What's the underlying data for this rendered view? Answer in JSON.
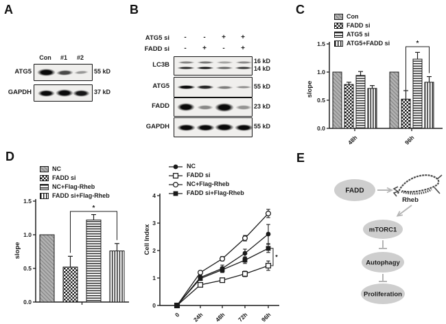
{
  "figure": {
    "panels": {
      "a": {
        "label": "A",
        "lanes": [
          "Con",
          "#1",
          "#2"
        ],
        "rows": [
          {
            "target": "ATG5",
            "marker": "55 kD",
            "bands": [
              1,
              0.72,
              0.38
            ]
          },
          {
            "target": "GAPDH",
            "marker": "37 kD",
            "bands": [
              1,
              1,
              0.95
            ]
          }
        ]
      },
      "b": {
        "label": "B",
        "conditions": [
          {
            "name": "ATG5 si",
            "signs": [
              "-",
              "-",
              "+",
              "+"
            ]
          },
          {
            "name": "FADD si",
            "signs": [
              "-",
              "+",
              "-",
              "+"
            ]
          }
        ],
        "blots": [
          {
            "target": "LC3B",
            "markers": [
              "16 kD",
              "14 kD"
            ],
            "bands": [
              0.85,
              0.95,
              0.6,
              0.8
            ]
          },
          {
            "target": "ATG5",
            "markers": [
              "55 kD"
            ],
            "bands": [
              1,
              0.88,
              0.5,
              0.42
            ]
          },
          {
            "target": "FADD",
            "markers": [
              "23 kD"
            ],
            "bands": [
              1,
              0.45,
              1,
              0.4
            ]
          },
          {
            "target": "GAPDH",
            "markers": [
              "55 kD"
            ],
            "bands": [
              1,
              1,
              1,
              1
            ]
          }
        ]
      },
      "c": {
        "label": "C"
      },
      "d": {
        "label": "D"
      },
      "e": {
        "label": "E",
        "nodes": [
          "FADD",
          "Rheb",
          "mTORC1",
          "Autophagy",
          "Proliferation"
        ],
        "edges": [
          {
            "from": "FADD",
            "to": "Rheb",
            "type": "activation-arrow"
          },
          {
            "from": "Rheb",
            "to": "mTORC1",
            "type": "activation-arrow"
          },
          {
            "from": "mTORC1",
            "to": "Autophagy",
            "type": "inhibition-bar"
          },
          {
            "from": "Autophagy",
            "to": "Proliferation",
            "type": "inhibition-bar"
          }
        ]
      }
    }
  },
  "chart_data": [
    {
      "id": "chart-c",
      "type": "bar",
      "title": "",
      "xlabel": "",
      "ylabel": "slope",
      "ylim": [
        0,
        1.5
      ],
      "yticks": [
        0.0,
        0.5,
        1.0,
        1.5
      ],
      "categories": [
        "48h",
        "96h"
      ],
      "series": [
        {
          "name": "Con",
          "pattern": "hatch",
          "values": [
            1.0,
            1.0
          ],
          "errors": [
            0,
            0
          ]
        },
        {
          "name": "FADD si",
          "pattern": "checker",
          "values": [
            0.78,
            0.52
          ],
          "errors": [
            0.04,
            0.15
          ]
        },
        {
          "name": "ATG5 si",
          "pattern": "hlines",
          "values": [
            0.94,
            1.23
          ],
          "errors": [
            0.07,
            0.12
          ]
        },
        {
          "name": "ATG5+FADD si",
          "pattern": "vlines",
          "values": [
            0.71,
            0.82
          ],
          "errors": [
            0.05,
            0.1
          ]
        }
      ],
      "legend_position": "top-left",
      "grid": false,
      "significance": {
        "label": "*",
        "category": "96h",
        "between": [
          "FADD si",
          "ATG5+FADD si"
        ]
      }
    },
    {
      "id": "chart-d-bar",
      "type": "bar",
      "title": "",
      "xlabel": "",
      "ylabel": "slope",
      "ylim": [
        0,
        1.5
      ],
      "yticks": [
        0.0,
        0.5,
        1.0,
        1.5
      ],
      "categories": [
        ""
      ],
      "series": [
        {
          "name": "NC",
          "pattern": "hatch",
          "values": [
            1.0
          ],
          "errors": [
            0
          ]
        },
        {
          "name": "FADD si",
          "pattern": "checker",
          "values": [
            0.52
          ],
          "errors": [
            0.16
          ]
        },
        {
          "name": "NC+Flag-Rheb",
          "pattern": "hlines",
          "values": [
            1.22
          ],
          "errors": [
            0.08
          ]
        },
        {
          "name": "FADD si+Flag-Rheb",
          "pattern": "vlines",
          "values": [
            0.76
          ],
          "errors": [
            0.11
          ]
        }
      ],
      "legend_position": "top-left",
      "grid": false,
      "significance": {
        "label": "*",
        "between": [
          "FADD si",
          "FADD si+Flag-Rheb"
        ]
      }
    },
    {
      "id": "chart-d-line",
      "type": "line",
      "title": "",
      "xlabel": "",
      "ylabel": "Cell Index",
      "ylim": [
        0,
        4
      ],
      "yticks": [
        0,
        1,
        2,
        3,
        4
      ],
      "x_labels": [
        "0",
        "24h",
        "48h",
        "72h",
        "96h"
      ],
      "series": [
        {
          "name": "NC",
          "marker": "filled-circle",
          "values": [
            0,
            1.02,
            1.35,
            1.9,
            2.6
          ],
          "errors": [
            0,
            0.08,
            0.12,
            0.15,
            0.35
          ]
        },
        {
          "name": "FADD si",
          "marker": "open-square",
          "values": [
            0,
            0.75,
            0.92,
            1.15,
            1.45
          ],
          "errors": [
            0,
            0.05,
            0.06,
            0.1,
            0.17
          ]
        },
        {
          "name": "NC+Flag-Rheb",
          "marker": "open-circle",
          "values": [
            0,
            1.2,
            1.7,
            2.45,
            3.35
          ],
          "errors": [
            0,
            0.06,
            0.08,
            0.1,
            0.15
          ]
        },
        {
          "name": "FADD si+Flag-Rheb",
          "marker": "filled-square",
          "values": [
            0,
            0.98,
            1.3,
            1.65,
            2.08
          ],
          "errors": [
            0,
            0.06,
            0.1,
            0.12,
            0.15
          ]
        }
      ],
      "legend_position": "top-left",
      "grid": false,
      "significance": {
        "label": "*",
        "at": "96h",
        "between": [
          "FADD si",
          "FADD si+Flag-Rheb"
        ]
      }
    }
  ],
  "colors": {
    "ink": "#1a1a1a",
    "gray_bar": "#b2b2b2",
    "hatch_line": "#8a8a8a",
    "node_fill": "#cecece",
    "connector_gray": "#b5b5b5",
    "sketch": "#4a4a4a"
  }
}
